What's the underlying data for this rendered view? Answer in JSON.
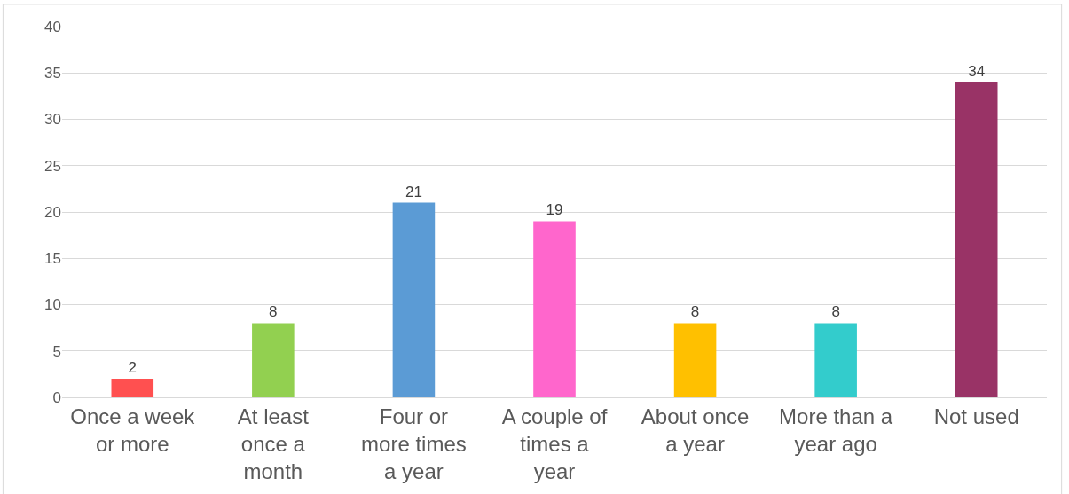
{
  "chart_data": {
    "type": "bar",
    "categories": [
      "Once a week or more",
      "At least once a month",
      "Four or more times a year",
      "A couple of times a year",
      "About once a year",
      "More than a year ago",
      "Not used"
    ],
    "values": [
      2,
      8,
      21,
      19,
      8,
      8,
      34
    ],
    "colors": [
      "#ff5050",
      "#92d050",
      "#5b9bd5",
      "#ff66cc",
      "#ffc000",
      "#33cccc",
      "#993366"
    ],
    "ylim": [
      0,
      40
    ],
    "yticks": [
      0,
      5,
      10,
      15,
      20,
      25,
      30,
      35,
      40
    ],
    "grid": "y",
    "data_labels": true,
    "legend": false
  }
}
